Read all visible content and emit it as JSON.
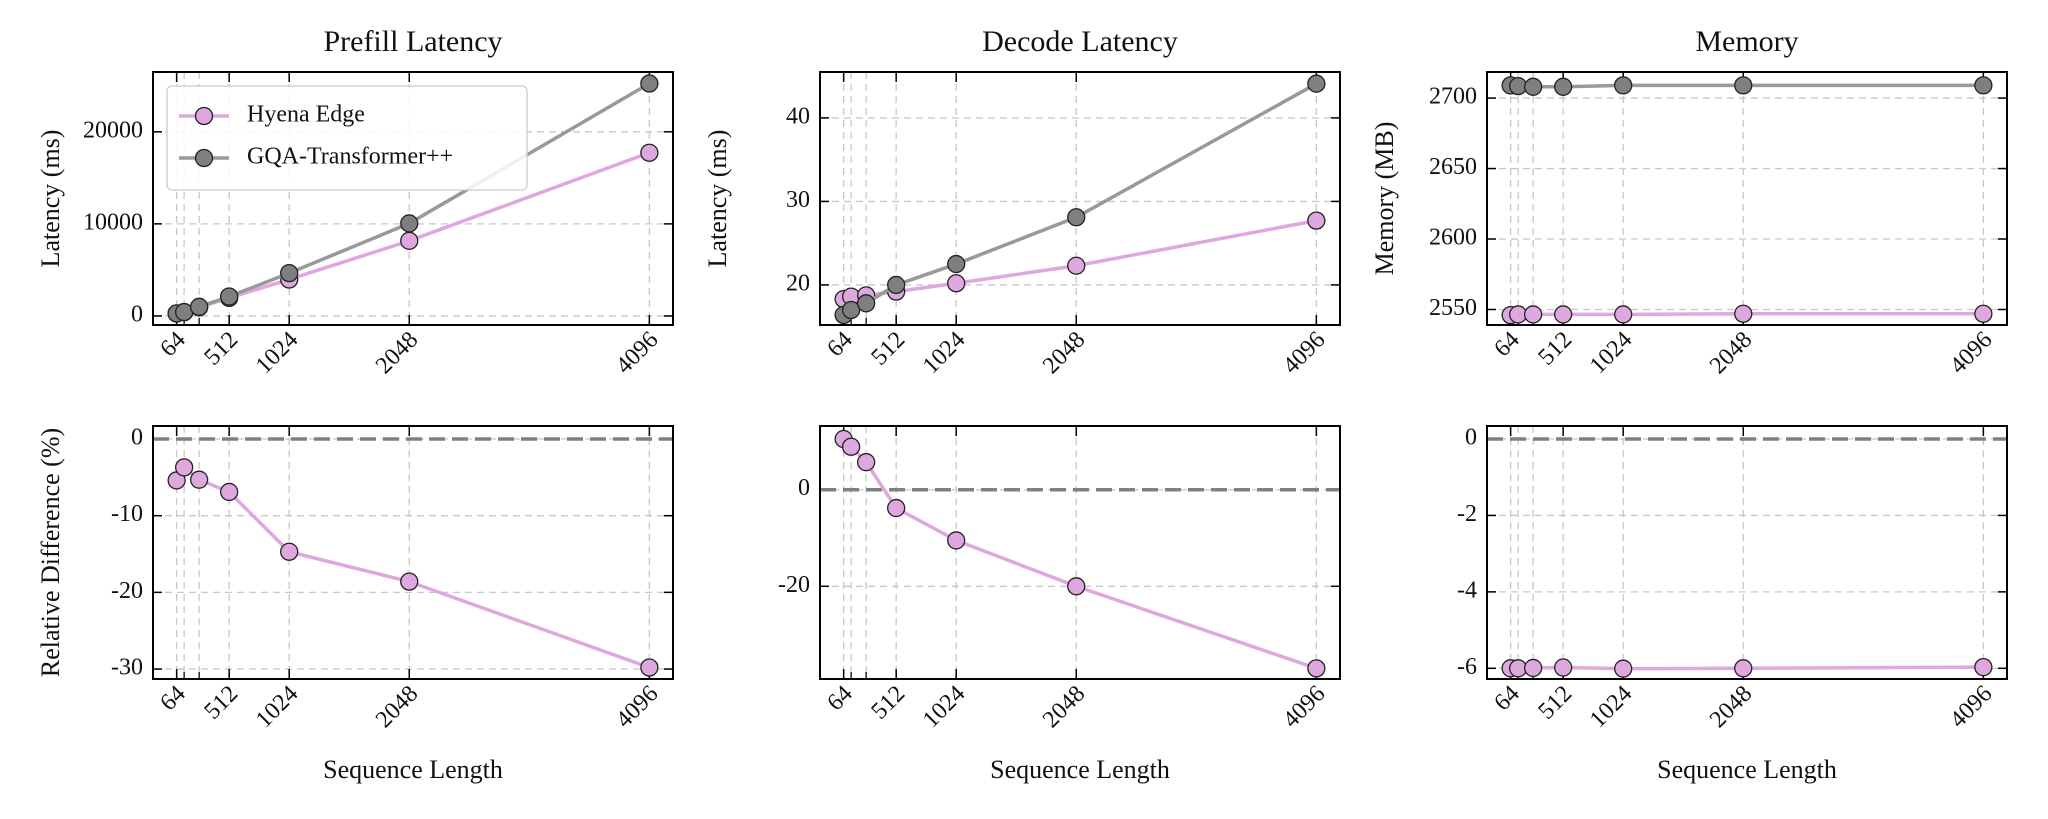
{
  "chart_data": [
    {
      "type": "line",
      "title": "Prefill Latency",
      "ylabel": "Latency (ms)",
      "x": [
        64,
        128,
        256,
        512,
        1024,
        2048,
        4096
      ],
      "xlim": [
        -137.6,
        4297.6
      ],
      "xticks": [
        64,
        512,
        1024,
        2048,
        4096
      ],
      "ylim": [
        -984,
        26499
      ],
      "yticks": [
        0,
        10000,
        20000
      ],
      "grid": true,
      "legend": "upper left",
      "series": [
        {
          "name": "Hyena Edge",
          "color": "#dea8de",
          "values": [
            265,
            403,
            938,
            1962,
            3962,
            8161,
            17726
          ]
        },
        {
          "name": "GQA-Transformer++",
          "color": "#999999",
          "values": [
            280,
            420,
            990,
            2110,
            4650,
            10050,
            25250
          ]
        }
      ]
    },
    {
      "type": "line",
      "title": "Decode Latency",
      "ylabel": "Latency (ms)",
      "x": [
        64,
        128,
        256,
        512,
        1024,
        2048,
        4096
      ],
      "xlim": [
        -137.6,
        4297.6
      ],
      "xticks": [
        64,
        512,
        1024,
        2048,
        4096
      ],
      "ylim": [
        15.2,
        45.5
      ],
      "yticks": [
        20,
        30,
        40
      ],
      "grid": true,
      "series": [
        {
          "color": "#dea8de",
          "values": [
            18.3,
            18.6,
            18.75,
            19.2,
            20.2,
            22.3,
            27.7
          ]
        },
        {
          "color": "#999999",
          "values": [
            16.4,
            17.0,
            17.8,
            20.0,
            22.5,
            28.1,
            44.1
          ]
        }
      ]
    },
    {
      "type": "line",
      "title": "Memory",
      "ylabel": "Memory (MB)",
      "x": [
        64,
        128,
        256,
        512,
        1024,
        2048,
        4096
      ],
      "xlim": [
        -137.6,
        4297.6
      ],
      "xticks": [
        64,
        512,
        1024,
        2048,
        4096
      ],
      "ylim": [
        2539,
        2718.5
      ],
      "yticks": [
        2550,
        2600,
        2650,
        2700
      ],
      "grid": true,
      "series": [
        {
          "color": "#dea8de",
          "values": [
            2546,
            2546.5,
            2546.5,
            2546.5,
            2546.5,
            2547,
            2547
          ]
        },
        {
          "color": "#999999",
          "values": [
            2709,
            2708.5,
            2708,
            2708,
            2709,
            2709,
            2709
          ]
        }
      ]
    },
    {
      "type": "line",
      "ylabel": "Relative Difference (%)",
      "xlabel": "Sequence Length",
      "x": [
        64,
        128,
        256,
        512,
        1024,
        2048,
        4096
      ],
      "xlim": [
        -137.6,
        4297.6
      ],
      "xticks": [
        64,
        512,
        1024,
        2048,
        4096
      ],
      "ylim": [
        -31.3,
        1.7
      ],
      "yticks": [
        -30,
        -20,
        -10,
        0
      ],
      "grid": true,
      "reference_line": 0,
      "series": [
        {
          "color": "#dea8de",
          "values": [
            -5.4,
            -3.7,
            -5.3,
            -6.9,
            -14.7,
            -18.6,
            -29.8
          ]
        }
      ]
    },
    {
      "type": "line",
      "xlabel": "Sequence Length",
      "x": [
        64,
        128,
        256,
        512,
        1024,
        2048,
        4096
      ],
      "xlim": [
        -137.6,
        4297.6
      ],
      "xticks": [
        64,
        512,
        1024,
        2048,
        4096
      ],
      "ylim": [
        -39.2,
        13.2
      ],
      "yticks": [
        -20,
        0
      ],
      "grid": true,
      "reference_line": 0,
      "series": [
        {
          "color": "#dea8de",
          "values": [
            10.5,
            8.9,
            5.7,
            -3.8,
            -10.5,
            -20.0,
            -37.0
          ]
        }
      ]
    },
    {
      "type": "line",
      "xlabel": "Sequence Length",
      "x": [
        64,
        128,
        256,
        512,
        1024,
        2048,
        4096
      ],
      "xlim": [
        -137.6,
        4297.6
      ],
      "xticks": [
        64,
        512,
        1024,
        2048,
        4096
      ],
      "ylim": [
        -6.28,
        0.34
      ],
      "yticks": [
        -6,
        -4,
        -2,
        0
      ],
      "grid": true,
      "reference_line": 0,
      "series": [
        {
          "color": "#dea8de",
          "values": [
            -6.0,
            -6.0,
            -5.99,
            -5.98,
            -6.01,
            -6.0,
            -5.97
          ]
        }
      ]
    }
  ]
}
